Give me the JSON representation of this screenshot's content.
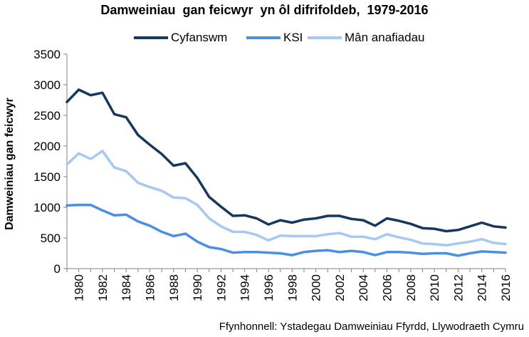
{
  "chart_data": {
    "type": "line",
    "title": "Damweiniau  gan feicwyr  yn ôl difrifoldeb,  1979-2016",
    "xlabel": "",
    "ylabel": "Damweiniau gan feicwyr",
    "ylim": [
      0,
      3500
    ],
    "yticks": [
      "0",
      "500",
      "1000",
      "1500",
      "2000",
      "2500",
      "3000",
      "3500"
    ],
    "xtick_labels": [
      "1980",
      "1982",
      "1984",
      "1986",
      "1988",
      "1990",
      "1992",
      "1994",
      "1996",
      "1998",
      "2000",
      "2002",
      "2004",
      "2006",
      "2008",
      "2010",
      "2012",
      "2014",
      "2016"
    ],
    "legend_position": "top",
    "grid": false,
    "x": [
      1979,
      1980,
      1981,
      1982,
      1983,
      1984,
      1985,
      1986,
      1987,
      1988,
      1989,
      1990,
      1991,
      1992,
      1993,
      1994,
      1995,
      1996,
      1997,
      1998,
      1999,
      2000,
      2001,
      2002,
      2003,
      2004,
      2005,
      2006,
      2007,
      2008,
      2009,
      2010,
      2011,
      2012,
      2013,
      2014,
      2015,
      2016
    ],
    "series": [
      {
        "name": "Cyfanswm",
        "color": "#17375e",
        "values": [
          2720,
          2920,
          2830,
          2870,
          2520,
          2470,
          2180,
          2020,
          1870,
          1680,
          1720,
          1480,
          1170,
          1010,
          860,
          870,
          820,
          720,
          790,
          750,
          800,
          820,
          860,
          860,
          810,
          790,
          700,
          820,
          780,
          730,
          660,
          650,
          610,
          630,
          690,
          750,
          690,
          670
        ]
      },
      {
        "name": "KSI",
        "color": "#4a8fe0",
        "values": [
          1030,
          1040,
          1040,
          950,
          870,
          880,
          770,
          700,
          600,
          530,
          570,
          440,
          350,
          320,
          260,
          270,
          270,
          260,
          250,
          220,
          270,
          290,
          300,
          270,
          290,
          270,
          220,
          270,
          270,
          260,
          240,
          250,
          250,
          210,
          250,
          280,
          270,
          260
        ]
      },
      {
        "name": "Mân anafiadau",
        "color": "#a6c8f3",
        "values": [
          1700,
          1880,
          1790,
          1920,
          1650,
          1590,
          1400,
          1330,
          1270,
          1160,
          1150,
          1040,
          820,
          690,
          600,
          600,
          550,
          460,
          540,
          530,
          530,
          530,
          560,
          580,
          520,
          520,
          480,
          560,
          510,
          470,
          410,
          400,
          380,
          410,
          440,
          480,
          420,
          400
        ]
      }
    ]
  },
  "source": "Ffynhonnell: Ystadegau Damweiniau Ffyrdd, Llywodraeth Cymru"
}
